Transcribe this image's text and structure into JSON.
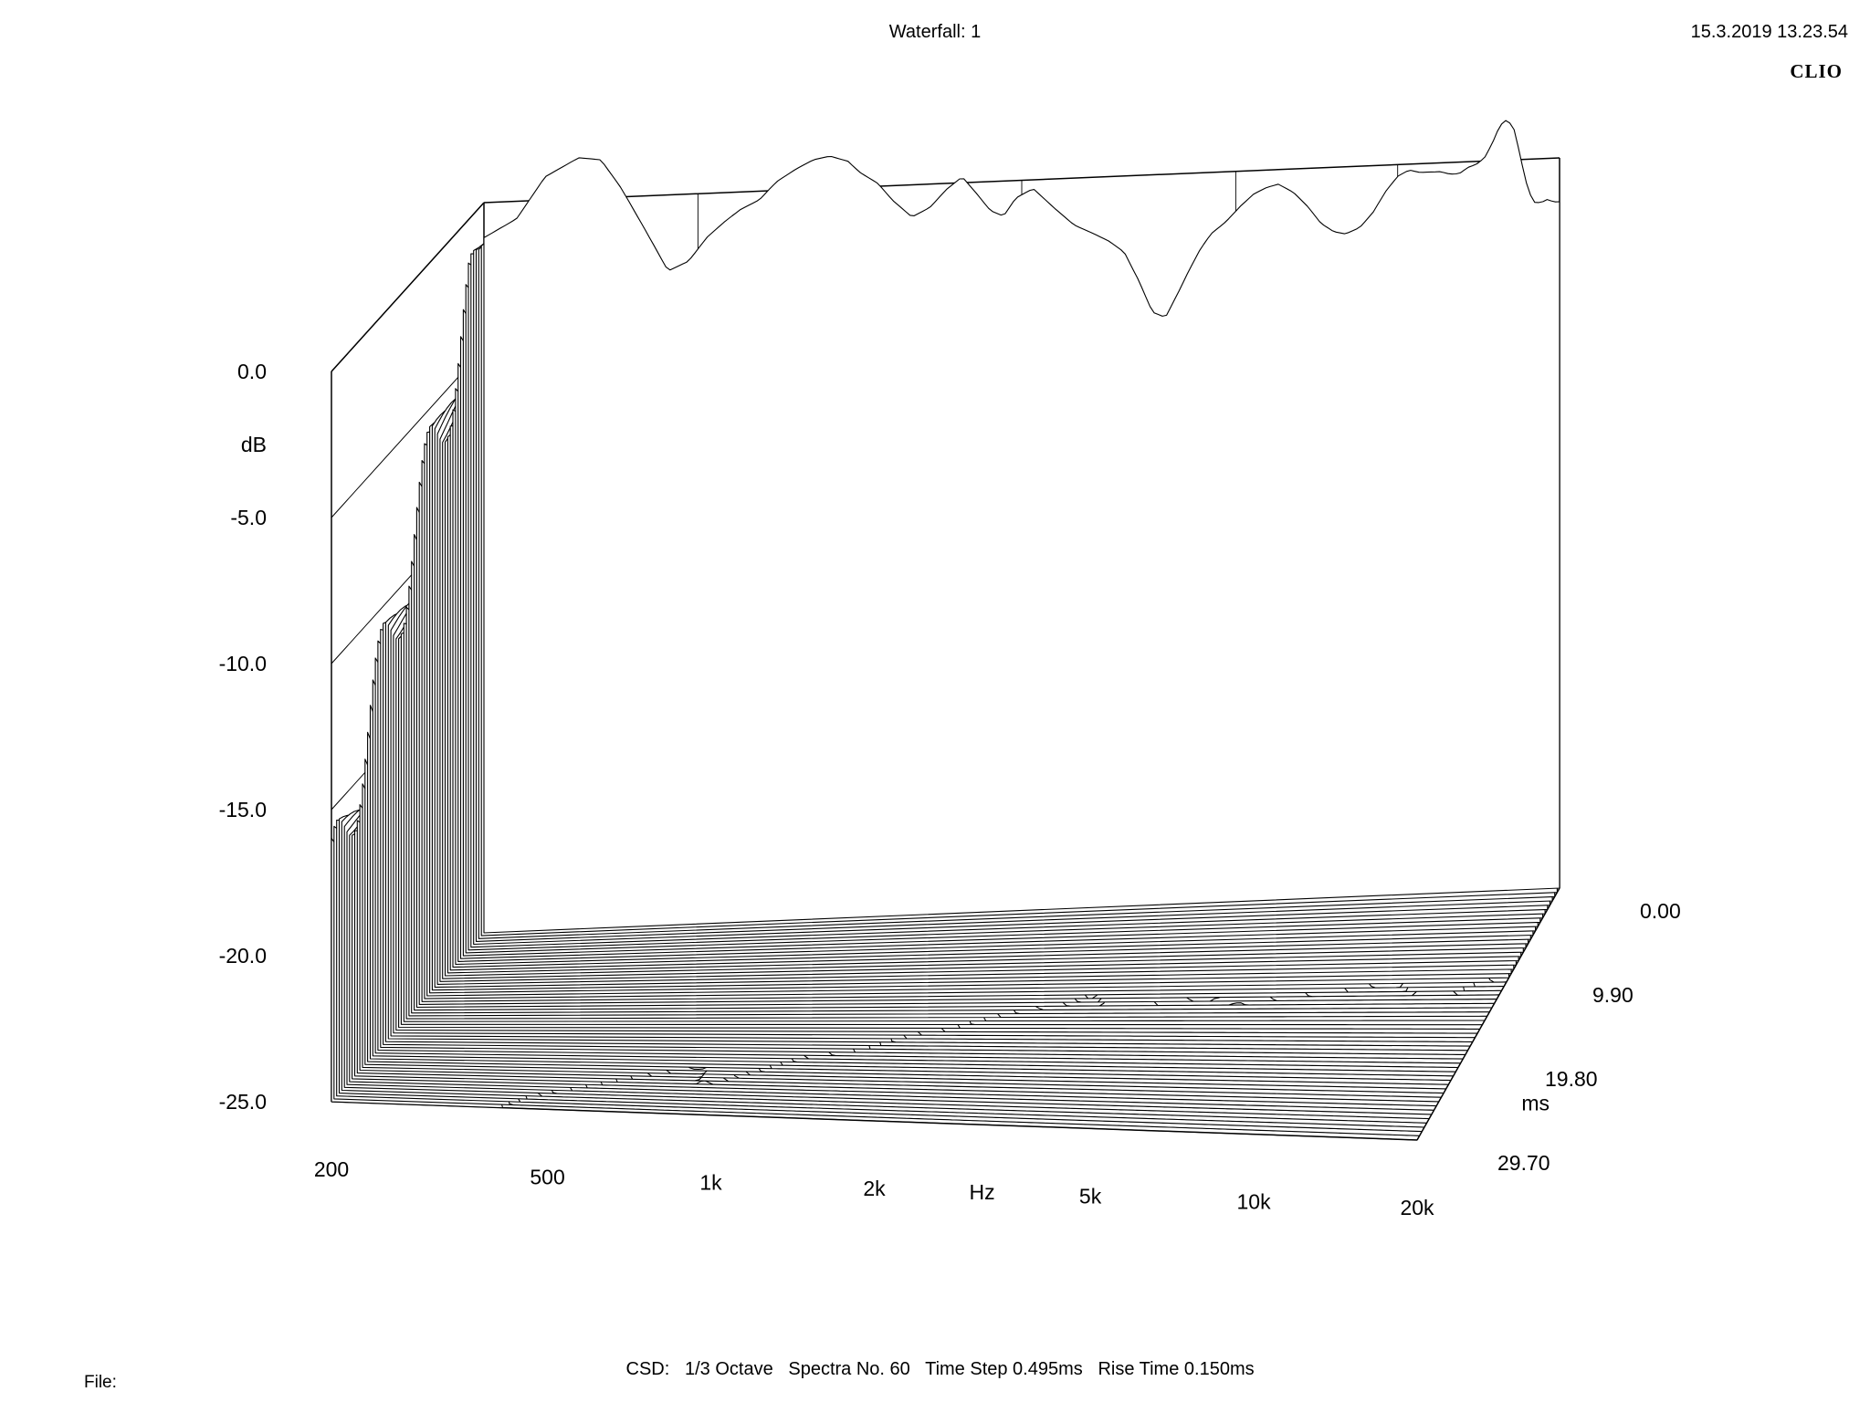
{
  "header": {
    "title": "Waterfall: 1",
    "timestamp": "15.3.2019 13.23.54",
    "brand": "CLIO"
  },
  "footer": {
    "csd_label": "CSD:",
    "smoothing": "1/3 Octave",
    "spectra": "Spectra No. 60",
    "time_step": "Time Step 0.495ms",
    "rise_time": "Rise Time 0.150ms",
    "file_label": "File:"
  },
  "chart_data": {
    "type": "waterfall",
    "title": "Waterfall: 1",
    "xlabel": "Hz",
    "ylabel": "dB",
    "zlabel": "ms",
    "x_scale": "log",
    "xlim": [
      200,
      20000
    ],
    "ylim": [
      -25,
      0
    ],
    "zlim": [
      0,
      29.7
    ],
    "x_ticks": [
      "200",
      "500",
      "1k",
      "2k",
      "5k",
      "10k",
      "20k"
    ],
    "x_tick_values": [
      200,
      500,
      1000,
      2000,
      5000,
      10000,
      20000
    ],
    "y_ticks": [
      "0.0",
      "-5.0",
      "-10.0",
      "-15.0",
      "-20.0",
      "-25.0"
    ],
    "y_tick_values": [
      0,
      -5,
      -10,
      -15,
      -20,
      -25
    ],
    "z_ticks": [
      "0.00",
      "9.90",
      "19.80",
      "29.70"
    ],
    "z_tick_values": [
      0,
      9.9,
      19.8,
      29.7
    ],
    "spectra_count": 60,
    "time_step_ms": 0.495,
    "rise_time_ms": 0.15,
    "front_spectrum": {
      "freq_hz": [
        200,
        230,
        260,
        300,
        330,
        360,
        400,
        440,
        480,
        520,
        560,
        600,
        650,
        700,
        760,
        820,
        880,
        950,
        1000,
        1080,
        1150,
        1250,
        1350,
        1450,
        1550,
        1650,
        1750,
        1850,
        1950,
        2100,
        2300,
        2500,
        2700,
        2900,
        3100,
        3300,
        3500,
        3700,
        3900,
        4100,
        4300,
        4500,
        4800,
        5100,
        5400,
        5700,
        6000,
        6400,
        6800,
        7200,
        7600,
        8000,
        8500,
        9000,
        9500,
        10000,
        10500,
        11000,
        11500,
        12000,
        12500,
        13000,
        13500,
        14000,
        14500,
        15000,
        15500,
        16000,
        16500,
        17000,
        17500,
        18000,
        18500,
        19000,
        19500,
        20000
      ],
      "level_db": [
        -1.2,
        -0.6,
        0.8,
        1.4,
        1.3,
        0.3,
        -1.2,
        -2.6,
        -2.3,
        -1.5,
        -1.0,
        -0.6,
        -0.3,
        0.3,
        0.7,
        1.0,
        1.1,
        0.9,
        0.5,
        0.1,
        -0.5,
        -1.1,
        -0.8,
        -0.2,
        0.2,
        -0.4,
        -1.0,
        -1.2,
        -0.6,
        -0.3,
        -1.0,
        -1.6,
        -1.9,
        -2.2,
        -2.6,
        -3.6,
        -4.7,
        -4.9,
        -4.1,
        -3.3,
        -2.6,
        -2.1,
        -1.7,
        -1.2,
        -0.8,
        -0.6,
        -0.5,
        -0.8,
        -1.3,
        -1.9,
        -2.2,
        -2.3,
        -2.1,
        -1.6,
        -0.9,
        -0.4,
        -0.2,
        -0.3,
        -0.3,
        -0.3,
        -0.4,
        -0.4,
        -0.2,
        -0.1,
        0.1,
        0.6,
        1.2,
        1.4,
        1.0,
        -0.1,
        -1.1,
        -1.5,
        -1.5,
        -1.4,
        -1.5,
        -1.5
      ]
    },
    "notes": "Cumulative spectral decay (CSD) waterfall; 60 spectra from 0.00 to 29.70 ms."
  }
}
